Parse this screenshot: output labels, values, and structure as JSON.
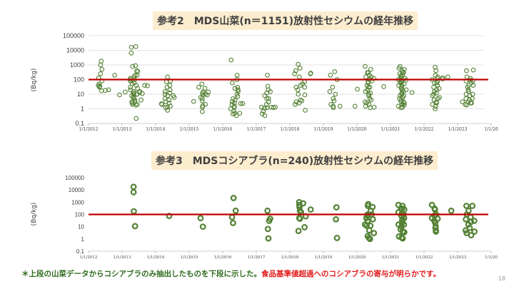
{
  "slide": {
    "page_number": "18",
    "note_green": "＊上段の山菜データからコシアブラのみ抽出したものを下段に示した。",
    "note_red": "食品基準値超過へのコシアブラの寄与が明らかです。"
  },
  "colors": {
    "marker": "#548235",
    "limit_line": "#c00000",
    "grid": "#d9d9d9",
    "title_bg": "#fdedcf"
  },
  "chart_data": [
    {
      "type": "scatter",
      "title": "参考2　MDS山菜(n＝1151)放射性セシウムの経年推移",
      "ylabel": "(Bq/kg)",
      "yscale": "log",
      "ylim": [
        0.1,
        100000
      ],
      "xlim": [
        2012,
        2024
      ],
      "y_ticks": [
        "0.1",
        "1",
        "10",
        "100",
        "1000",
        "10000",
        "100000"
      ],
      "x_ticks": [
        "1/1/2012",
        "1/1/2013",
        "1/1/2014",
        "1/1/2015",
        "1/1/2016",
        "1/1/2017",
        "1/1/2018",
        "1/1/2019",
        "1/1/2020",
        "1/1/2021",
        "1/1/2022",
        "1/1/2023",
        "1/1/20"
      ],
      "reference_line": 100,
      "grid": true,
      "clusters": [
        {
          "x": 2012.35,
          "v": [
            1800,
            1000,
            500,
            250,
            130,
            80,
            50,
            40,
            35,
            30,
            17
          ]
        },
        {
          "x": 2012.55,
          "v": [
            20,
            18
          ]
        },
        {
          "x": 2012.75,
          "v": [
            200
          ]
        },
        {
          "x": 2012.9,
          "v": [
            9
          ]
        },
        {
          "x": 2013.15,
          "v": [
            14
          ]
        },
        {
          "x": 2013.3,
          "v": [
            16000,
            6500,
            800,
            150,
            120,
            100,
            80,
            50,
            30,
            20,
            15,
            10,
            8,
            6,
            5,
            3,
            2.5,
            2
          ]
        },
        {
          "x": 2013.4,
          "v": [
            18000,
            900,
            200,
            100,
            60,
            40,
            25,
            12,
            10,
            7,
            4,
            3,
            2,
            1.8,
            0.22
          ]
        },
        {
          "x": 2013.5,
          "v": [
            400,
            350,
            200,
            15,
            13,
            10
          ]
        },
        {
          "x": 2013.6,
          "v": [
            11,
            4
          ]
        },
        {
          "x": 2013.72,
          "v": [
            40,
            38
          ]
        },
        {
          "x": 2014.18,
          "v": [
            2.2,
            2
          ]
        },
        {
          "x": 2014.3,
          "v": [
            150,
            70,
            30,
            15,
            10,
            5,
            3,
            1.3,
            1.2
          ]
        },
        {
          "x": 2014.4,
          "v": [
            80,
            40,
            20,
            12,
            8,
            4,
            2.5,
            1.5,
            0.8
          ]
        },
        {
          "x": 2014.5,
          "v": [
            8,
            6
          ]
        },
        {
          "x": 2015.18,
          "v": [
            3.2
          ]
        },
        {
          "x": 2015.35,
          "v": [
            50,
            30,
            12,
            9,
            6,
            3.5,
            0.65
          ]
        },
        {
          "x": 2015.45,
          "v": [
            25,
            15,
            10,
            5,
            2,
            1.6,
            1.3
          ]
        },
        {
          "x": 2015.55,
          "v": [
            14,
            9
          ]
        },
        {
          "x": 2016.3,
          "v": [
            2200,
            60,
            25,
            5,
            3,
            2,
            1.5,
            1,
            0.7,
            0.45
          ]
        },
        {
          "x": 2016.4,
          "v": [
            200,
            100,
            30,
            20,
            10,
            4,
            2.5,
            1.2,
            0.5,
            0.35
          ]
        },
        {
          "x": 2016.5,
          "v": [
            15,
            7,
            2.3,
            0.5
          ]
        },
        {
          "x": 2016.62,
          "v": [
            2.3
          ]
        },
        {
          "x": 2017.2,
          "v": [
            1.3,
            0.7,
            0.45
          ]
        },
        {
          "x": 2017.3,
          "v": [
            8,
            5,
            2,
            1.1,
            0.35
          ]
        },
        {
          "x": 2017.35,
          "v": [
            200,
            35,
            20,
            12,
            5,
            1.2
          ]
        },
        {
          "x": 2017.42,
          "v": [
            15,
            3,
            1.3
          ]
        },
        {
          "x": 2017.55,
          "v": [
            1.3,
            1.2
          ]
        },
        {
          "x": 2018.2,
          "v": [
            400,
            250,
            30,
            3,
            2
          ]
        },
        {
          "x": 2018.3,
          "v": [
            1100,
            600,
            150,
            40,
            20,
            10,
            4,
            2.5
          ]
        },
        {
          "x": 2018.4,
          "v": [
            70,
            50,
            30,
            9,
            3.5,
            0.8
          ]
        },
        {
          "x": 2018.6,
          "v": [
            270,
            250
          ]
        },
        {
          "x": 2019.25,
          "v": [
            200,
            30,
            15,
            5,
            2,
            1.2
          ]
        },
        {
          "x": 2019.35,
          "v": [
            350,
            100,
            10,
            3.5,
            1.5
          ]
        },
        {
          "x": 2019.5,
          "v": [
            1.5
          ]
        },
        {
          "x": 2019.9,
          "v": [
            1.5
          ]
        },
        {
          "x": 2019.95,
          "v": [
            22
          ]
        },
        {
          "x": 2020.3,
          "v": [
            800,
            300,
            150,
            70,
            30,
            15,
            8,
            3,
            1.5
          ]
        },
        {
          "x": 2020.35,
          "v": [
            500,
            200,
            100,
            60,
            40,
            20,
            10,
            5,
            2.5,
            1.2
          ]
        },
        {
          "x": 2020.4,
          "v": [
            300,
            150,
            80,
            30,
            12,
            4,
            2
          ]
        },
        {
          "x": 2020.45,
          "v": [
            120,
            1.3
          ]
        },
        {
          "x": 2020.75,
          "v": [
            33
          ]
        },
        {
          "x": 2021.3,
          "v": [
            800,
            600,
            400,
            250,
            180,
            120,
            100,
            80,
            60,
            40,
            30,
            20,
            12,
            8,
            5,
            3,
            2,
            1.5
          ]
        },
        {
          "x": 2021.35,
          "v": [
            500,
            300,
            200,
            150,
            90,
            70,
            50,
            25,
            15,
            10,
            6,
            4,
            2.5,
            1.8,
            1.2
          ]
        },
        {
          "x": 2021.4,
          "v": [
            300,
            120,
            40,
            8,
            3,
            1.3
          ]
        },
        {
          "x": 2021.5,
          "v": [
            90,
            20
          ]
        },
        {
          "x": 2021.7,
          "v": [
            13
          ]
        },
        {
          "x": 2022.3,
          "v": [
            700,
            200,
            100,
            60,
            30,
            15,
            8,
            4,
            2,
            1
          ]
        },
        {
          "x": 2022.35,
          "v": [
            400,
            150,
            80,
            40,
            20,
            10,
            5,
            3,
            1.5
          ]
        },
        {
          "x": 2022.42,
          "v": [
            120,
            60,
            25,
            12,
            6,
            2.5
          ]
        },
        {
          "x": 2022.5,
          "v": [
            130,
            110
          ]
        },
        {
          "x": 2022.75,
          "v": [
            150
          ]
        },
        {
          "x": 2023.18,
          "v": [
            3,
            2
          ]
        },
        {
          "x": 2023.3,
          "v": [
            400,
            150,
            80,
            40,
            20,
            10,
            5,
            3,
            1.8
          ]
        },
        {
          "x": 2023.35,
          "v": [
            120,
            90,
            60,
            30,
            15,
            8,
            4,
            2.5
          ]
        },
        {
          "x": 2023.45,
          "v": [
            450,
            80,
            40,
            10,
            5,
            2.5
          ]
        }
      ]
    },
    {
      "type": "scatter",
      "title": "参考3　MDSコシアブラ(n=240)放射性セシウムの経年推移",
      "ylabel": "(Bq/kg)",
      "yscale": "log",
      "ylim": [
        0.1,
        100000
      ],
      "xlim": [
        2012,
        2024
      ],
      "y_ticks": [
        "0.1",
        "1",
        "10",
        "100",
        "1000",
        "10000",
        "100000"
      ],
      "x_ticks": [
        "1/1/2012",
        "1/1/2013",
        "1/1/2014",
        "1/1/2015",
        "1/1/2016",
        "1/1/2017",
        "1/1/2018",
        "1/1/2019",
        "1/1/2020",
        "1/1/2021",
        "1/1/2022",
        "1/1/2023",
        "1/1/20"
      ],
      "reference_line": 100,
      "grid": false,
      "clusters": [
        {
          "x": 2013.33,
          "v": [
            6500,
            180
          ]
        },
        {
          "x": 2013.4,
          "v": [
            18000,
            11
          ]
        },
        {
          "x": 2014.35,
          "v": [
            75
          ]
        },
        {
          "x": 2015.4,
          "v": [
            50,
            10
          ]
        },
        {
          "x": 2016.3,
          "v": [
            2200,
            60,
            20
          ]
        },
        {
          "x": 2016.4,
          "v": [
            200
          ]
        },
        {
          "x": 2017.35,
          "v": [
            200,
            30,
            6.5,
            1.1
          ]
        },
        {
          "x": 2017.4,
          "v": [
            45
          ]
        },
        {
          "x": 2018.3,
          "v": [
            1000,
            600,
            200,
            50,
            4.5
          ]
        },
        {
          "x": 2018.35,
          "v": [
            800,
            400,
            150,
            45
          ]
        },
        {
          "x": 2018.45,
          "v": [
            70,
            9
          ]
        },
        {
          "x": 2018.6,
          "v": [
            250
          ]
        },
        {
          "x": 2019.35,
          "v": [
            380,
            40,
            1.2
          ]
        },
        {
          "x": 2020.3,
          "v": [
            700,
            100,
            50,
            15,
            1.7
          ]
        },
        {
          "x": 2020.35,
          "v": [
            500,
            200,
            80,
            30,
            12,
            5,
            1.2
          ]
        },
        {
          "x": 2020.45,
          "v": [
            400,
            100,
            40,
            12,
            3,
            1
          ]
        },
        {
          "x": 2021.3,
          "v": [
            600,
            300,
            150,
            80,
            30,
            15,
            6,
            1.6
          ]
        },
        {
          "x": 2021.35,
          "v": [
            500,
            250,
            100,
            50,
            20,
            10,
            4,
            1.3
          ]
        },
        {
          "x": 2021.4,
          "v": [
            300,
            120,
            40,
            15,
            3.5,
            1.1
          ]
        },
        {
          "x": 2022.3,
          "v": [
            600,
            250,
            100,
            50,
            20,
            8,
            4
          ]
        },
        {
          "x": 2022.35,
          "v": [
            300,
            80,
            30,
            10,
            5
          ]
        },
        {
          "x": 2022.45,
          "v": [
            45
          ]
        },
        {
          "x": 2022.75,
          "v": [
            200
          ]
        },
        {
          "x": 2023.3,
          "v": [
            500,
            100,
            40,
            15,
            5,
            3
          ]
        },
        {
          "x": 2023.35,
          "v": [
            200,
            60,
            25,
            8,
            2
          ]
        },
        {
          "x": 2023.45,
          "v": [
            500,
            30,
            4
          ]
        }
      ]
    }
  ]
}
